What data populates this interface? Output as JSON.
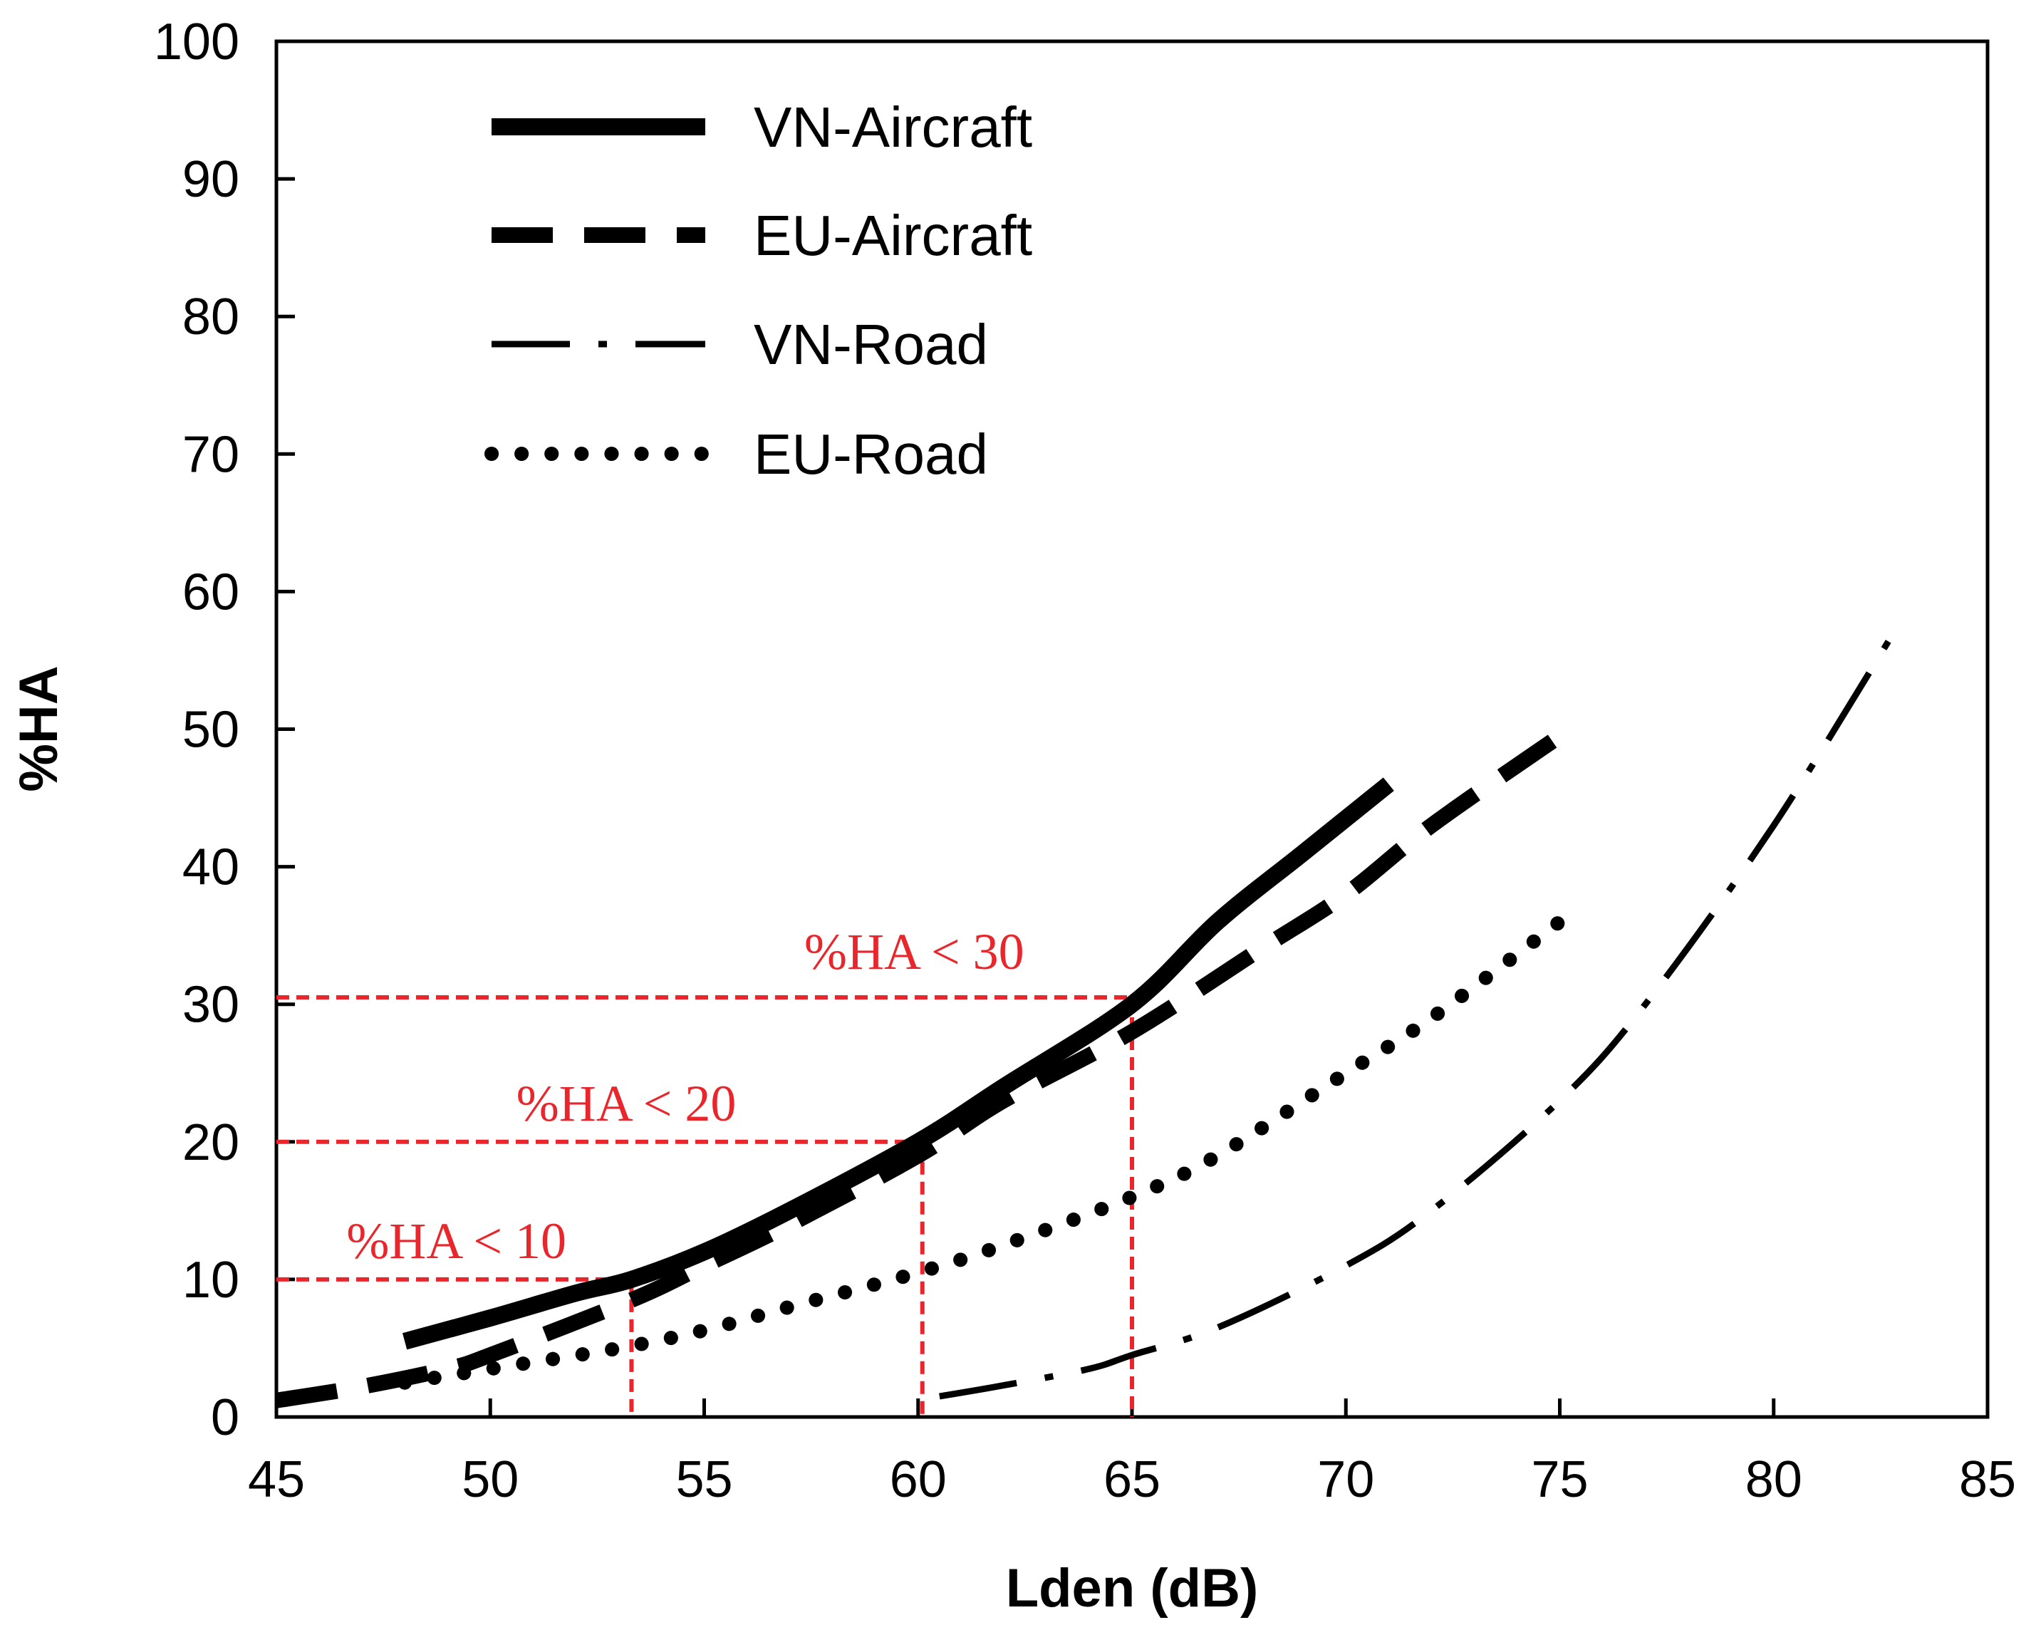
{
  "chart_data": {
    "type": "line",
    "title": "",
    "xlabel": "Lden (dB)",
    "ylabel": "%HA",
    "xlim": [
      45,
      85
    ],
    "ylim": [
      0,
      100
    ],
    "xticks": [
      45,
      50,
      55,
      60,
      65,
      70,
      75,
      80,
      85
    ],
    "yticks": [
      0,
      10,
      20,
      30,
      40,
      50,
      60,
      70,
      80,
      90,
      100
    ],
    "grid": false,
    "legend_position": "top-left",
    "series": [
      {
        "name": "VN-Aircraft",
        "style": "solid",
        "color": "#000000",
        "x": [
          48,
          50,
          52,
          53.3,
          55,
          57,
          60,
          62,
          65,
          67,
          69,
          71
        ],
        "y": [
          5.5,
          7.2,
          9,
          10,
          12,
          15,
          20,
          24,
          30,
          36,
          41,
          46
        ]
      },
      {
        "name": "EU-Aircraft",
        "style": "dashed",
        "color": "#000000",
        "x": [
          45,
          47,
          49,
          50,
          53.3,
          55,
          57,
          60,
          62,
          65,
          68,
          70,
          72,
          75
        ],
        "y": [
          1.2,
          2.2,
          3.5,
          4.5,
          8.5,
          11,
          14,
          19,
          23,
          28,
          34,
          38,
          43,
          49.5
        ]
      },
      {
        "name": "VN-Road",
        "style": "dashdot",
        "color": "#000000",
        "x": [
          60.5,
          62,
          64,
          65,
          67,
          70,
          72,
          75,
          77,
          80,
          83
        ],
        "y": [
          1.5,
          2.3,
          3.5,
          4.5,
          6.5,
          11,
          15,
          23,
          30,
          43,
          58
        ]
      },
      {
        "name": "EU-Road",
        "style": "dotted",
        "color": "#000000",
        "x": [
          48,
          50,
          53,
          55,
          57,
          60,
          62,
          65,
          67,
          70,
          72,
          75
        ],
        "y": [
          2.5,
          3.5,
          5,
          6.3,
          8,
          10.5,
          12.5,
          16,
          19,
          25,
          29,
          36
        ]
      }
    ],
    "annotations": [
      {
        "text": "%HA < 10",
        "x": 53.3,
        "y": 10,
        "color": "#e8262b"
      },
      {
        "text": "%HA < 20",
        "x": 60.1,
        "y": 20,
        "color": "#e8262b"
      },
      {
        "text": "%HA < 30",
        "x": 65,
        "y": 30.5,
        "color": "#e8262b"
      }
    ]
  }
}
